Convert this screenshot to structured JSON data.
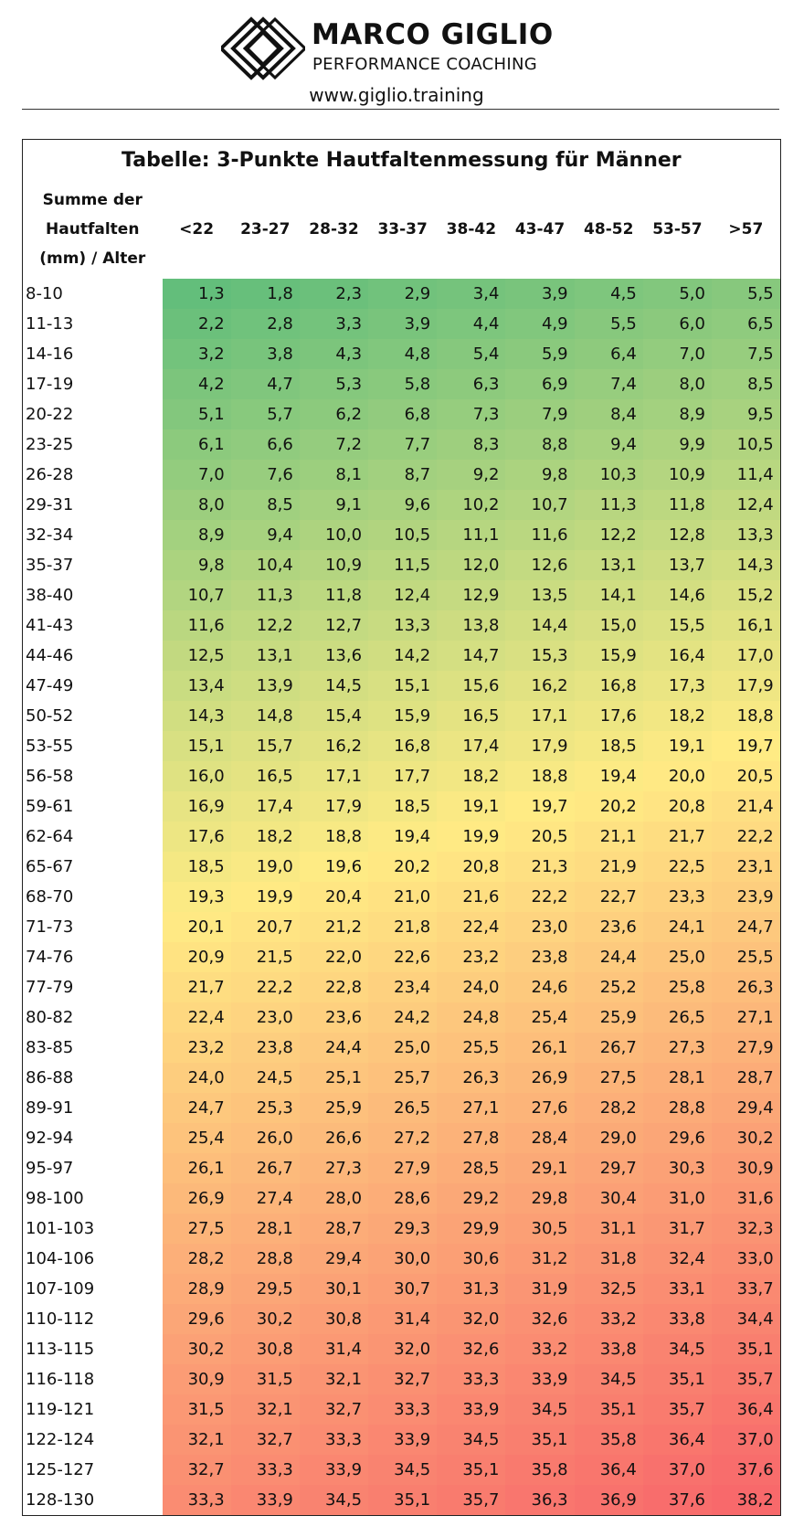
{
  "header": {
    "brand": "MARCO GIGLIO",
    "tagline": "PERFORMANCE COACHING",
    "url": "www.giglio.training"
  },
  "table": {
    "title": "Tabelle: 3-Punkte Hautfaltenmessung für Männer",
    "corner": [
      "Summe der",
      "Hautfalten",
      "(mm) / Alter"
    ],
    "columns": [
      "<22",
      "23-27",
      "28-32",
      "33-37",
      "38-42",
      "43-47",
      "48-52",
      "53-57",
      ">57"
    ],
    "rows": [
      {
        "label": "8-10",
        "values": [
          "1,3",
          "1,8",
          "2,3",
          "2,9",
          "3,4",
          "3,9",
          "4,5",
          "5,0",
          "5,5"
        ]
      },
      {
        "label": "11-13",
        "values": [
          "2,2",
          "2,8",
          "3,3",
          "3,9",
          "4,4",
          "4,9",
          "5,5",
          "6,0",
          "6,5"
        ]
      },
      {
        "label": "14-16",
        "values": [
          "3,2",
          "3,8",
          "4,3",
          "4,8",
          "5,4",
          "5,9",
          "6,4",
          "7,0",
          "7,5"
        ]
      },
      {
        "label": "17-19",
        "values": [
          "4,2",
          "4,7",
          "5,3",
          "5,8",
          "6,3",
          "6,9",
          "7,4",
          "8,0",
          "8,5"
        ]
      },
      {
        "label": "20-22",
        "values": [
          "5,1",
          "5,7",
          "6,2",
          "6,8",
          "7,3",
          "7,9",
          "8,4",
          "8,9",
          "9,5"
        ]
      },
      {
        "label": "23-25",
        "values": [
          "6,1",
          "6,6",
          "7,2",
          "7,7",
          "8,3",
          "8,8",
          "9,4",
          "9,9",
          "10,5"
        ]
      },
      {
        "label": "26-28",
        "values": [
          "7,0",
          "7,6",
          "8,1",
          "8,7",
          "9,2",
          "9,8",
          "10,3",
          "10,9",
          "11,4"
        ]
      },
      {
        "label": "29-31",
        "values": [
          "8,0",
          "8,5",
          "9,1",
          "9,6",
          "10,2",
          "10,7",
          "11,3",
          "11,8",
          "12,4"
        ]
      },
      {
        "label": "32-34",
        "values": [
          "8,9",
          "9,4",
          "10,0",
          "10,5",
          "11,1",
          "11,6",
          "12,2",
          "12,8",
          "13,3"
        ]
      },
      {
        "label": "35-37",
        "values": [
          "9,8",
          "10,4",
          "10,9",
          "11,5",
          "12,0",
          "12,6",
          "13,1",
          "13,7",
          "14,3"
        ]
      },
      {
        "label": "38-40",
        "values": [
          "10,7",
          "11,3",
          "11,8",
          "12,4",
          "12,9",
          "13,5",
          "14,1",
          "14,6",
          "15,2"
        ]
      },
      {
        "label": "41-43",
        "values": [
          "11,6",
          "12,2",
          "12,7",
          "13,3",
          "13,8",
          "14,4",
          "15,0",
          "15,5",
          "16,1"
        ]
      },
      {
        "label": "44-46",
        "values": [
          "12,5",
          "13,1",
          "13,6",
          "14,2",
          "14,7",
          "15,3",
          "15,9",
          "16,4",
          "17,0"
        ]
      },
      {
        "label": "47-49",
        "values": [
          "13,4",
          "13,9",
          "14,5",
          "15,1",
          "15,6",
          "16,2",
          "16,8",
          "17,3",
          "17,9"
        ]
      },
      {
        "label": "50-52",
        "values": [
          "14,3",
          "14,8",
          "15,4",
          "15,9",
          "16,5",
          "17,1",
          "17,6",
          "18,2",
          "18,8"
        ]
      },
      {
        "label": "53-55",
        "values": [
          "15,1",
          "15,7",
          "16,2",
          "16,8",
          "17,4",
          "17,9",
          "18,5",
          "19,1",
          "19,7"
        ]
      },
      {
        "label": "56-58",
        "values": [
          "16,0",
          "16,5",
          "17,1",
          "17,7",
          "18,2",
          "18,8",
          "19,4",
          "20,0",
          "20,5"
        ]
      },
      {
        "label": "59-61",
        "values": [
          "16,9",
          "17,4",
          "17,9",
          "18,5",
          "19,1",
          "19,7",
          "20,2",
          "20,8",
          "21,4"
        ]
      },
      {
        "label": "62-64",
        "values": [
          "17,6",
          "18,2",
          "18,8",
          "19,4",
          "19,9",
          "20,5",
          "21,1",
          "21,7",
          "22,2"
        ]
      },
      {
        "label": "65-67",
        "values": [
          "18,5",
          "19,0",
          "19,6",
          "20,2",
          "20,8",
          "21,3",
          "21,9",
          "22,5",
          "23,1"
        ]
      },
      {
        "label": "68-70",
        "values": [
          "19,3",
          "19,9",
          "20,4",
          "21,0",
          "21,6",
          "22,2",
          "22,7",
          "23,3",
          "23,9"
        ]
      },
      {
        "label": "71-73",
        "values": [
          "20,1",
          "20,7",
          "21,2",
          "21,8",
          "22,4",
          "23,0",
          "23,6",
          "24,1",
          "24,7"
        ]
      },
      {
        "label": "74-76",
        "values": [
          "20,9",
          "21,5",
          "22,0",
          "22,6",
          "23,2",
          "23,8",
          "24,4",
          "25,0",
          "25,5"
        ]
      },
      {
        "label": "77-79",
        "values": [
          "21,7",
          "22,2",
          "22,8",
          "23,4",
          "24,0",
          "24,6",
          "25,2",
          "25,8",
          "26,3"
        ]
      },
      {
        "label": "80-82",
        "values": [
          "22,4",
          "23,0",
          "23,6",
          "24,2",
          "24,8",
          "25,4",
          "25,9",
          "26,5",
          "27,1"
        ]
      },
      {
        "label": "83-85",
        "values": [
          "23,2",
          "23,8",
          "24,4",
          "25,0",
          "25,5",
          "26,1",
          "26,7",
          "27,3",
          "27,9"
        ]
      },
      {
        "label": "86-88",
        "values": [
          "24,0",
          "24,5",
          "25,1",
          "25,7",
          "26,3",
          "26,9",
          "27,5",
          "28,1",
          "28,7"
        ]
      },
      {
        "label": "89-91",
        "values": [
          "24,7",
          "25,3",
          "25,9",
          "26,5",
          "27,1",
          "27,6",
          "28,2",
          "28,8",
          "29,4"
        ]
      },
      {
        "label": "92-94",
        "values": [
          "25,4",
          "26,0",
          "26,6",
          "27,2",
          "27,8",
          "28,4",
          "29,0",
          "29,6",
          "30,2"
        ]
      },
      {
        "label": "95-97",
        "values": [
          "26,1",
          "26,7",
          "27,3",
          "27,9",
          "28,5",
          "29,1",
          "29,7",
          "30,3",
          "30,9"
        ]
      },
      {
        "label": "98-100",
        "values": [
          "26,9",
          "27,4",
          "28,0",
          "28,6",
          "29,2",
          "29,8",
          "30,4",
          "31,0",
          "31,6"
        ]
      },
      {
        "label": "101-103",
        "values": [
          "27,5",
          "28,1",
          "28,7",
          "29,3",
          "29,9",
          "30,5",
          "31,1",
          "31,7",
          "32,3"
        ]
      },
      {
        "label": "104-106",
        "values": [
          "28,2",
          "28,8",
          "29,4",
          "30,0",
          "30,6",
          "31,2",
          "31,8",
          "32,4",
          "33,0"
        ]
      },
      {
        "label": "107-109",
        "values": [
          "28,9",
          "29,5",
          "30,1",
          "30,7",
          "31,3",
          "31,9",
          "32,5",
          "33,1",
          "33,7"
        ]
      },
      {
        "label": "110-112",
        "values": [
          "29,6",
          "30,2",
          "30,8",
          "31,4",
          "32,0",
          "32,6",
          "33,2",
          "33,8",
          "34,4"
        ]
      },
      {
        "label": "113-115",
        "values": [
          "30,2",
          "30,8",
          "31,4",
          "32,0",
          "32,6",
          "33,2",
          "33,8",
          "34,5",
          "35,1"
        ]
      },
      {
        "label": "116-118",
        "values": [
          "30,9",
          "31,5",
          "32,1",
          "32,7",
          "33,3",
          "33,9",
          "34,5",
          "35,1",
          "35,7"
        ]
      },
      {
        "label": "119-121",
        "values": [
          "31,5",
          "32,1",
          "32,7",
          "33,3",
          "33,9",
          "34,5",
          "35,1",
          "35,7",
          "36,4"
        ]
      },
      {
        "label": "122-124",
        "values": [
          "32,1",
          "32,7",
          "33,3",
          "33,9",
          "34,5",
          "35,1",
          "35,8",
          "36,4",
          "37,0"
        ]
      },
      {
        "label": "125-127",
        "values": [
          "32,7",
          "33,3",
          "33,9",
          "34,5",
          "35,1",
          "35,8",
          "36,4",
          "37,0",
          "37,6"
        ]
      },
      {
        "label": "128-130",
        "values": [
          "33,3",
          "33,9",
          "34,5",
          "35,1",
          "35,7",
          "36,3",
          "36,9",
          "37,6",
          "38,2"
        ]
      }
    ]
  }
}
